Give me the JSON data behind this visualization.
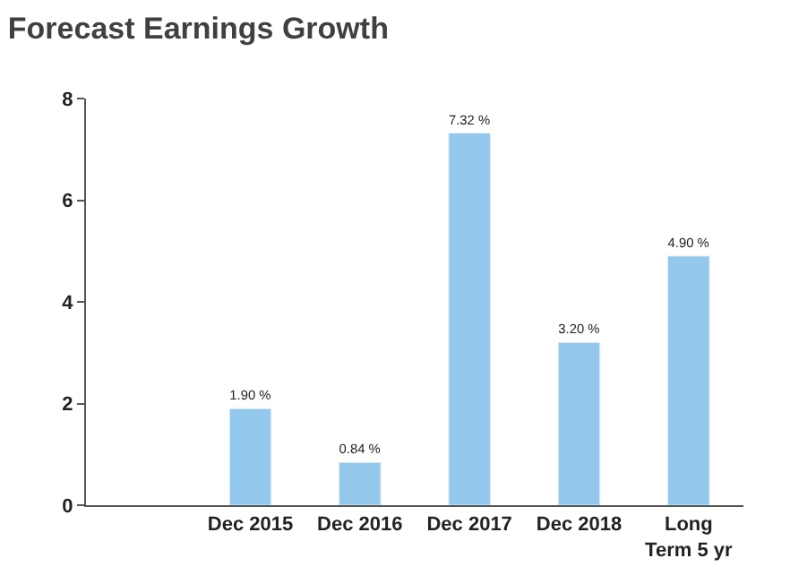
{
  "chart_data": {
    "type": "bar",
    "title": "Forecast Earnings Growth",
    "categories": [
      null,
      "Dec 2015",
      "Dec 2016",
      "Dec 2017",
      "Dec 2018",
      "Long Term 5 yr"
    ],
    "values": [
      null,
      1.9,
      0.84,
      7.32,
      3.2,
      4.9
    ],
    "value_labels": [
      null,
      "1.90 %",
      "0.84 %",
      "7.32 %",
      "3.20 %",
      "4.90 %"
    ],
    "color": "#92c8ec",
    "ylim": [
      0,
      8
    ],
    "yticks": [
      0,
      2,
      4,
      6,
      8
    ]
  }
}
